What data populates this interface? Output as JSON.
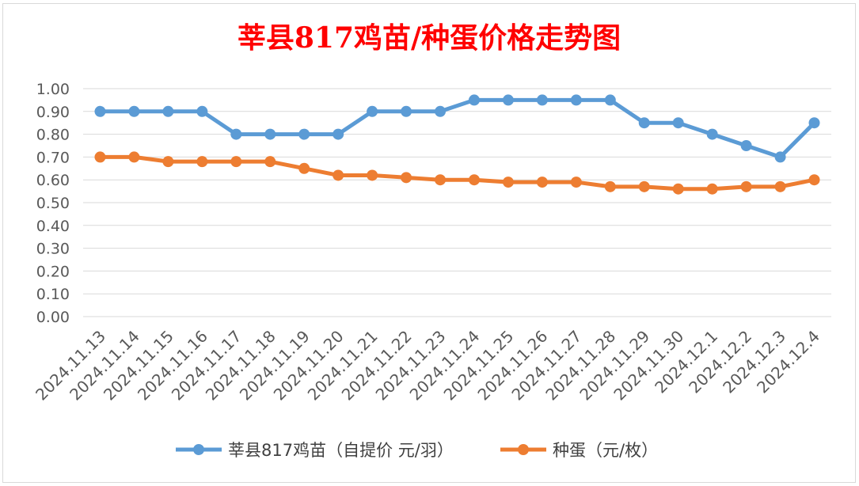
{
  "chart_data": {
    "type": "line",
    "title": "莘县817鸡苗/种蛋价格走势图",
    "title_color": "#ff0000",
    "categories": [
      "2024.11.13",
      "2024.11.14",
      "2024.11.15",
      "2024.11.16",
      "2024.11.17",
      "2024.11.18",
      "2024.11.19",
      "2024.11.20",
      "2024.11.21",
      "2024.11.22",
      "2024.11.23",
      "2024.11.24",
      "2024.11.25",
      "2024.11.26",
      "2024.11.27",
      "2024.11.28",
      "2024.11.29",
      "2024.11.30",
      "2024.12.1",
      "2024.12.2",
      "2024.12.3",
      "2024.12.4"
    ],
    "series": [
      {
        "name": "莘县817鸡苗（自提价 元/羽）",
        "color": "#5b9bd5",
        "values": [
          0.9,
          0.9,
          0.9,
          0.9,
          0.8,
          0.8,
          0.8,
          0.8,
          0.9,
          0.9,
          0.9,
          0.95,
          0.95,
          0.95,
          0.95,
          0.95,
          0.85,
          0.85,
          0.8,
          0.75,
          0.7,
          0.85
        ]
      },
      {
        "name": "种蛋（元/枚）",
        "color": "#ed7d31",
        "values": [
          0.7,
          0.7,
          0.68,
          0.68,
          0.68,
          0.68,
          0.65,
          0.62,
          0.62,
          0.61,
          0.6,
          0.6,
          0.59,
          0.59,
          0.59,
          0.57,
          0.57,
          0.56,
          0.56,
          0.57,
          0.57,
          0.6
        ]
      }
    ],
    "y_ticks": [
      "0.00",
      "0.10",
      "0.20",
      "0.30",
      "0.40",
      "0.50",
      "0.60",
      "0.70",
      "0.80",
      "0.90",
      "1.00"
    ],
    "ylim": [
      0,
      1.0
    ],
    "grid": true,
    "legend_position": "bottom"
  }
}
